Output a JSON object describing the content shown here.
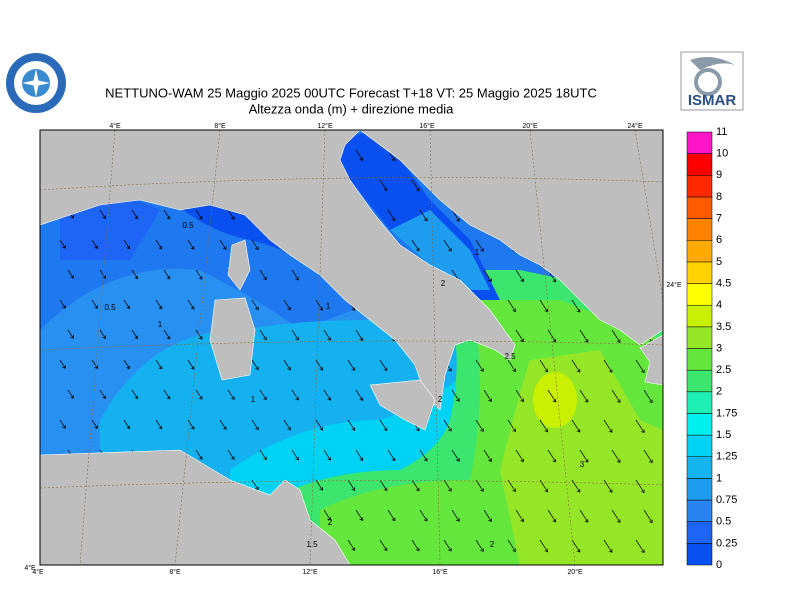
{
  "header": {
    "title": "NETTUNO-WAM  25   Maggio  2025 00UTC Forecast T+18 VT: 25   Maggio  2025 18UTC",
    "subtitle": "Altezza onda (m) + direzione media",
    "logo_text": "ISMAR"
  },
  "map": {
    "top_lon_labels": [
      "4°E",
      "8°E",
      "12°E",
      "16°E",
      "20°E",
      "24°E"
    ],
    "bottom_lon_labels": [
      "4°E",
      "8°E",
      "12°E",
      "16°E",
      "20°E"
    ],
    "corner_label": "4°E",
    "right_label": "24°E",
    "contour_labels": [
      "0.5",
      "0.5",
      "1",
      "1",
      "1",
      "1",
      "2",
      "2.5",
      "3",
      "2",
      "1.5",
      "2",
      "2"
    ]
  },
  "colorbar": {
    "labels": [
      "0",
      "0.25",
      "0.5",
      "0.75",
      "1",
      "1.25",
      "1.5",
      "1.75",
      "2",
      "2.5",
      "3",
      "3.5",
      "4",
      "4.5",
      "5",
      "6",
      "7",
      "8",
      "9",
      "10",
      "11"
    ],
    "colors": [
      "#0a50f0",
      "#1e64f5",
      "#2882f0",
      "#1e9cf0",
      "#14b4f0",
      "#00d2f5",
      "#00f0f0",
      "#1ef0b4",
      "#3ce66e",
      "#64e63c",
      "#96e628",
      "#c8f000",
      "#ffff00",
      "#ffd200",
      "#ffaa00",
      "#ff8200",
      "#ff5a00",
      "#ff2800",
      "#ff0000",
      "#ff14c8"
    ]
  }
}
